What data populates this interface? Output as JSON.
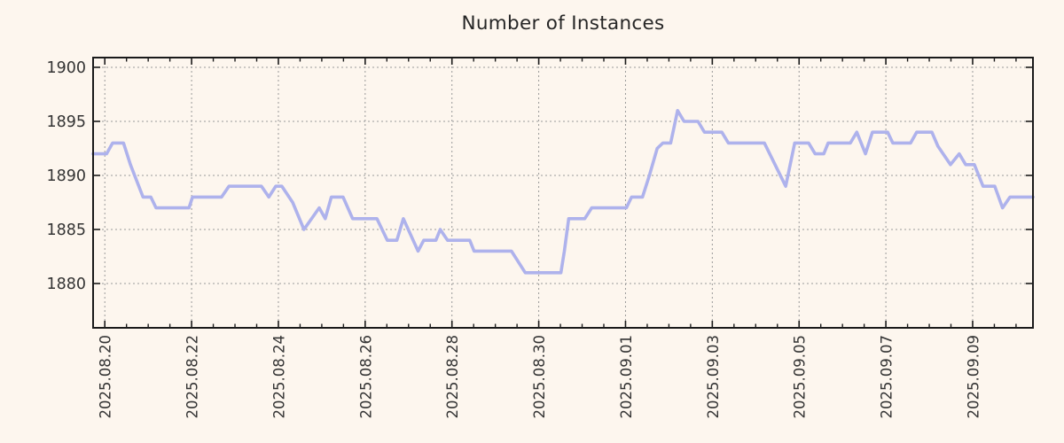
{
  "title": "Number of Instances",
  "colors": {
    "background": "#fdf6ee",
    "line": "#aeb2ec",
    "grid": "#999999",
    "axis": "#1a1a1a",
    "tick_text": "#333333",
    "title_text": "#262626"
  },
  "chart_data": {
    "type": "line",
    "title": "Number of Instances",
    "grid": "dotted",
    "legend": null,
    "x_axis": {
      "epoch_label": "2025.08.20",
      "unit": "days since 2025-08-20",
      "range_days": [
        -0.27,
        21.39
      ],
      "major_ticks": [
        {
          "t": 0,
          "label": "2025.08.20"
        },
        {
          "t": 2,
          "label": "2025.08.22"
        },
        {
          "t": 4,
          "label": "2025.08.24"
        },
        {
          "t": 6,
          "label": "2025.08.26"
        },
        {
          "t": 8,
          "label": "2025.08.28"
        },
        {
          "t": 10,
          "label": "2025.08.30"
        },
        {
          "t": 12,
          "label": "2025.09.01"
        },
        {
          "t": 14,
          "label": "2025.09.03"
        },
        {
          "t": 16,
          "label": "2025.09.05"
        },
        {
          "t": 18,
          "label": "2025.09.07"
        },
        {
          "t": 20,
          "label": "2025.09.09"
        }
      ],
      "minor_tick_step_days": 0.5
    },
    "y_axis": {
      "range": [
        1875.9,
        1900.9
      ],
      "ticks": [
        1880,
        1885,
        1890,
        1895,
        1900
      ]
    },
    "series": [
      {
        "name": "Number of Instances",
        "color": "#aeb2ec",
        "points": [
          [
            -0.27,
            1892
          ],
          [
            0.04,
            1892
          ],
          [
            0.18,
            1893
          ],
          [
            0.43,
            1893
          ],
          [
            0.59,
            1891
          ],
          [
            0.88,
            1888
          ],
          [
            1.06,
            1888
          ],
          [
            1.18,
            1887
          ],
          [
            1.94,
            1887
          ],
          [
            2.02,
            1888
          ],
          [
            2.69,
            1888
          ],
          [
            2.86,
            1889
          ],
          [
            3.61,
            1889
          ],
          [
            3.78,
            1888
          ],
          [
            3.94,
            1889
          ],
          [
            4.08,
            1889
          ],
          [
            4.33,
            1887.5
          ],
          [
            4.59,
            1885
          ],
          [
            4.94,
            1887
          ],
          [
            5.08,
            1886
          ],
          [
            5.22,
            1888
          ],
          [
            5.49,
            1888
          ],
          [
            5.71,
            1886
          ],
          [
            6.27,
            1886
          ],
          [
            6.51,
            1884
          ],
          [
            6.73,
            1884
          ],
          [
            6.88,
            1886
          ],
          [
            7.22,
            1883
          ],
          [
            7.35,
            1884
          ],
          [
            7.63,
            1884
          ],
          [
            7.73,
            1885
          ],
          [
            7.9,
            1884
          ],
          [
            8.41,
            1884
          ],
          [
            8.51,
            1883
          ],
          [
            9.37,
            1883
          ],
          [
            9.69,
            1881
          ],
          [
            10.51,
            1881
          ],
          [
            10.59,
            1883
          ],
          [
            10.69,
            1886
          ],
          [
            11.06,
            1886
          ],
          [
            11.22,
            1887
          ],
          [
            12.02,
            1887
          ],
          [
            12.14,
            1888
          ],
          [
            12.39,
            1888
          ],
          [
            12.55,
            1890
          ],
          [
            12.73,
            1892.5
          ],
          [
            12.86,
            1893
          ],
          [
            13.04,
            1893
          ],
          [
            13.2,
            1896
          ],
          [
            13.35,
            1895
          ],
          [
            13.67,
            1895
          ],
          [
            13.82,
            1894
          ],
          [
            14.22,
            1894
          ],
          [
            14.37,
            1893
          ],
          [
            15.2,
            1893
          ],
          [
            15.69,
            1889
          ],
          [
            15.9,
            1893
          ],
          [
            16.22,
            1893
          ],
          [
            16.37,
            1892
          ],
          [
            16.57,
            1892
          ],
          [
            16.67,
            1893
          ],
          [
            17.18,
            1893
          ],
          [
            17.33,
            1894
          ],
          [
            17.53,
            1892
          ],
          [
            17.69,
            1894
          ],
          [
            18.04,
            1894
          ],
          [
            18.16,
            1893
          ],
          [
            18.57,
            1893
          ],
          [
            18.71,
            1894
          ],
          [
            19.06,
            1894
          ],
          [
            19.2,
            1892.7
          ],
          [
            19.49,
            1891
          ],
          [
            19.69,
            1892
          ],
          [
            19.84,
            1891
          ],
          [
            20.04,
            1891
          ],
          [
            20.14,
            1890
          ],
          [
            20.24,
            1889
          ],
          [
            20.51,
            1889
          ],
          [
            20.69,
            1887
          ],
          [
            20.86,
            1888
          ],
          [
            21.39,
            1888
          ]
        ]
      }
    ]
  }
}
